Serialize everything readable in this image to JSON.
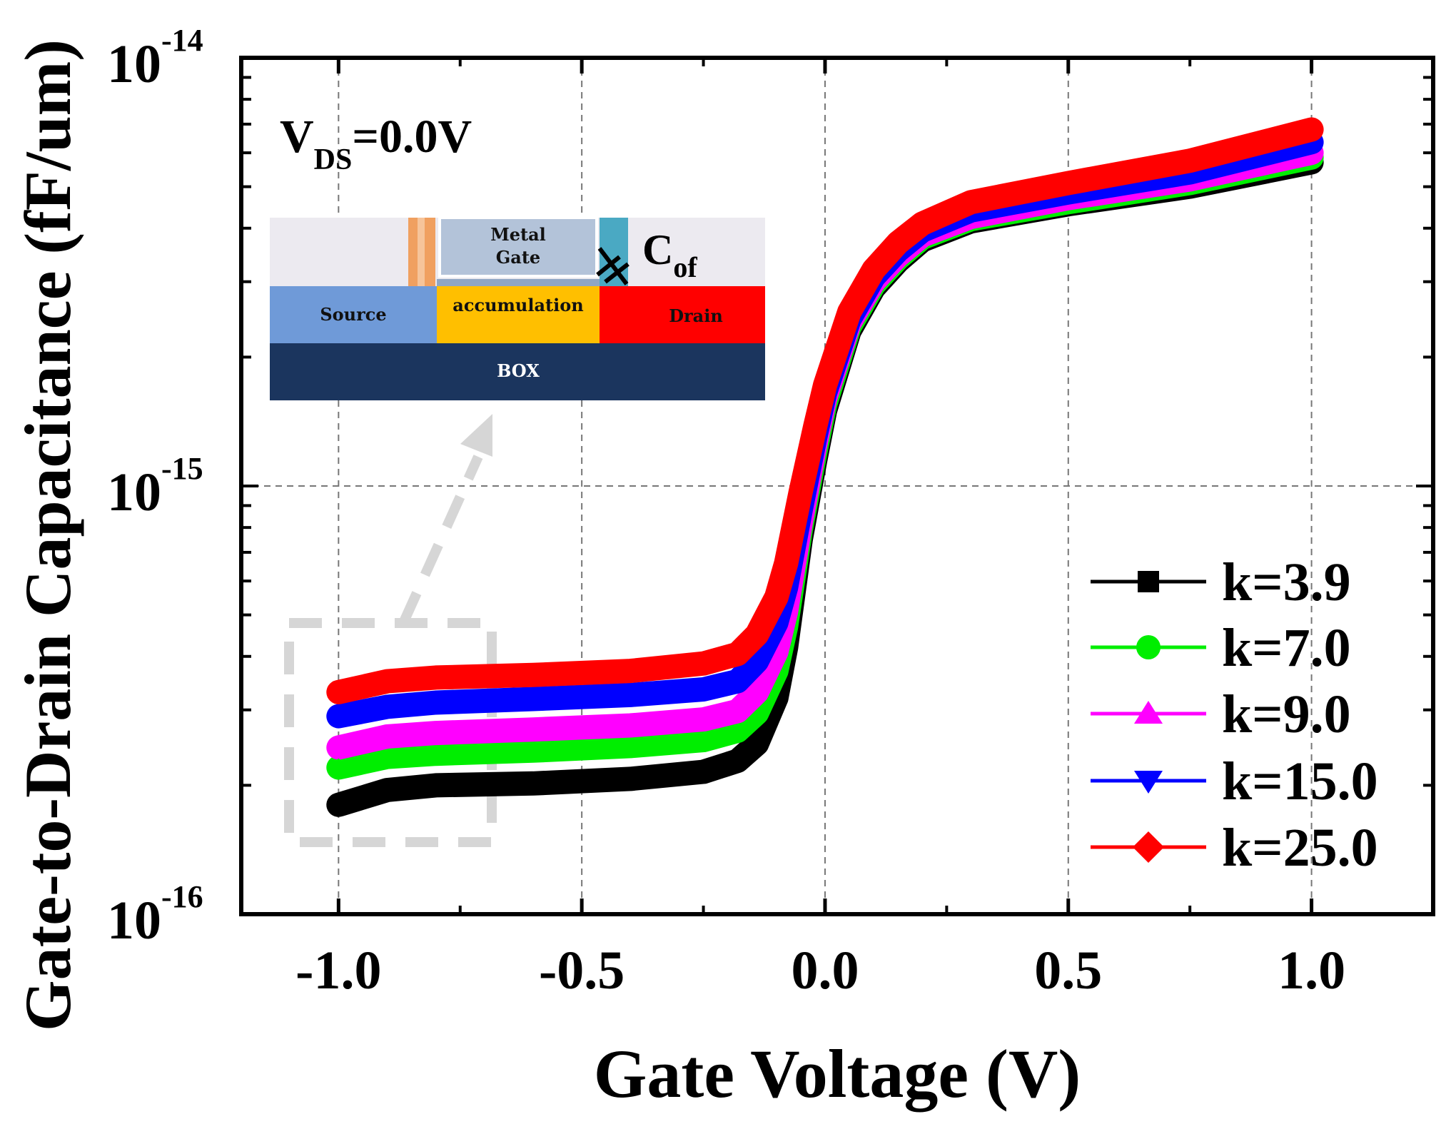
{
  "chart_data": {
    "type": "line",
    "title": "",
    "xlabel": "Gate Voltage (V)",
    "ylabel": "Gate-to-Drain Capacitance (fF/um)",
    "x_scale": "linear",
    "y_scale": "log",
    "xlim": [
      -1.2,
      1.25
    ],
    "ylim": [
      1e-16,
      1e-14
    ],
    "xticks": [
      -1.0,
      -0.5,
      0.0,
      0.5,
      1.0
    ],
    "xtick_labels": [
      "-1.0",
      "-0.5",
      "0.0",
      "0.5",
      "1.0"
    ],
    "yticks": [
      1e-16,
      1e-15,
      1e-14
    ],
    "ytick_labels": [
      {
        "base": "10",
        "exp": "-16"
      },
      {
        "base": "10",
        "exp": "-15"
      },
      {
        "base": "10",
        "exp": "-14"
      }
    ],
    "grid": true,
    "legend_position": "bottom-right",
    "annotation": {
      "main": "V",
      "sub": "DS",
      "rest": "=0.0V"
    },
    "x": [
      -1.0,
      -0.9,
      -0.8,
      -0.6,
      -0.4,
      -0.25,
      -0.18,
      -0.14,
      -0.1,
      -0.08,
      -0.05,
      -0.02,
      0.0,
      0.05,
      0.1,
      0.15,
      0.2,
      0.3,
      0.5,
      0.75,
      1.0
    ],
    "series": [
      {
        "name": "k=3.9",
        "color": "#000000",
        "marker": "square",
        "values": [
          1.8e-16,
          1.95e-16,
          2e-16,
          2.02e-16,
          2.07e-16,
          2.15e-16,
          2.28e-16,
          2.5e-16,
          3.2e-16,
          4.2e-16,
          7.5e-16,
          1.15e-15,
          1.5e-15,
          2.3e-15,
          2.9e-15,
          3.35e-15,
          3.75e-15,
          4.15e-15,
          4.55e-15,
          5e-15,
          5.7e-15
        ]
      },
      {
        "name": "k=7.0",
        "color": "#00ee00",
        "marker": "circle",
        "values": [
          2.2e-16,
          2.33e-16,
          2.37e-16,
          2.41e-16,
          2.47e-16,
          2.55e-16,
          2.68e-16,
          2.95e-16,
          3.7e-16,
          4.7e-16,
          7.9e-16,
          1.2e-15,
          1.55e-15,
          2.35e-15,
          2.95e-15,
          3.4e-15,
          3.8e-15,
          4.2e-15,
          4.6e-15,
          5.1e-15,
          5.85e-15
        ]
      },
      {
        "name": "k=9.0",
        "color": "#ff00ff",
        "marker": "triangle-up",
        "values": [
          2.45e-16,
          2.6e-16,
          2.65e-16,
          2.7e-16,
          2.76e-16,
          2.85e-16,
          2.98e-16,
          3.3e-16,
          4.1e-16,
          5.1e-16,
          8.2e-16,
          1.25e-15,
          1.6e-15,
          2.4e-15,
          3e-15,
          3.45e-15,
          3.85e-15,
          4.25e-15,
          4.7e-15,
          5.2e-15,
          6e-15
        ]
      },
      {
        "name": "k=15.0",
        "color": "#0000ff",
        "marker": "triangle-down",
        "values": [
          2.9e-16,
          3.05e-16,
          3.12e-16,
          3.18e-16,
          3.25e-16,
          3.35e-16,
          3.5e-16,
          3.9e-16,
          4.8e-16,
          5.8e-16,
          8.8e-16,
          1.3e-15,
          1.65e-15,
          2.45e-15,
          3.08e-15,
          3.55e-15,
          3.95e-15,
          4.4e-15,
          4.85e-15,
          5.4e-15,
          6.35e-15
        ]
      },
      {
        "name": "k=25.0",
        "color": "#ff0000",
        "marker": "diamond",
        "values": [
          3.3e-16,
          3.5e-16,
          3.57e-16,
          3.62e-16,
          3.7e-16,
          3.85e-16,
          4.05e-16,
          4.5e-16,
          5.5e-16,
          6.6e-16,
          9.7e-16,
          1.38e-15,
          1.72e-15,
          2.55e-15,
          3.2e-15,
          3.7e-15,
          4.1e-15,
          4.6e-15,
          5.1e-15,
          5.75e-15,
          6.8e-15
        ]
      }
    ]
  },
  "inset": {
    "metal_gate_line1": "Metal",
    "metal_gate_line2": "Gate",
    "source": "Source",
    "accumulation": "accumulation",
    "drain": "Drain",
    "box": "BOX",
    "cof_main": "C",
    "cof_sub": "of",
    "colors": {
      "top": "#eceaf0",
      "metal_gate": "#b3c3d9",
      "spacer_left": "#f0a060",
      "spacer_right": "#4aa9c3",
      "source": "#6f9ad8",
      "accumulation": "#ffbf00",
      "drain": "#ff0000",
      "box": "#1b355e"
    }
  }
}
